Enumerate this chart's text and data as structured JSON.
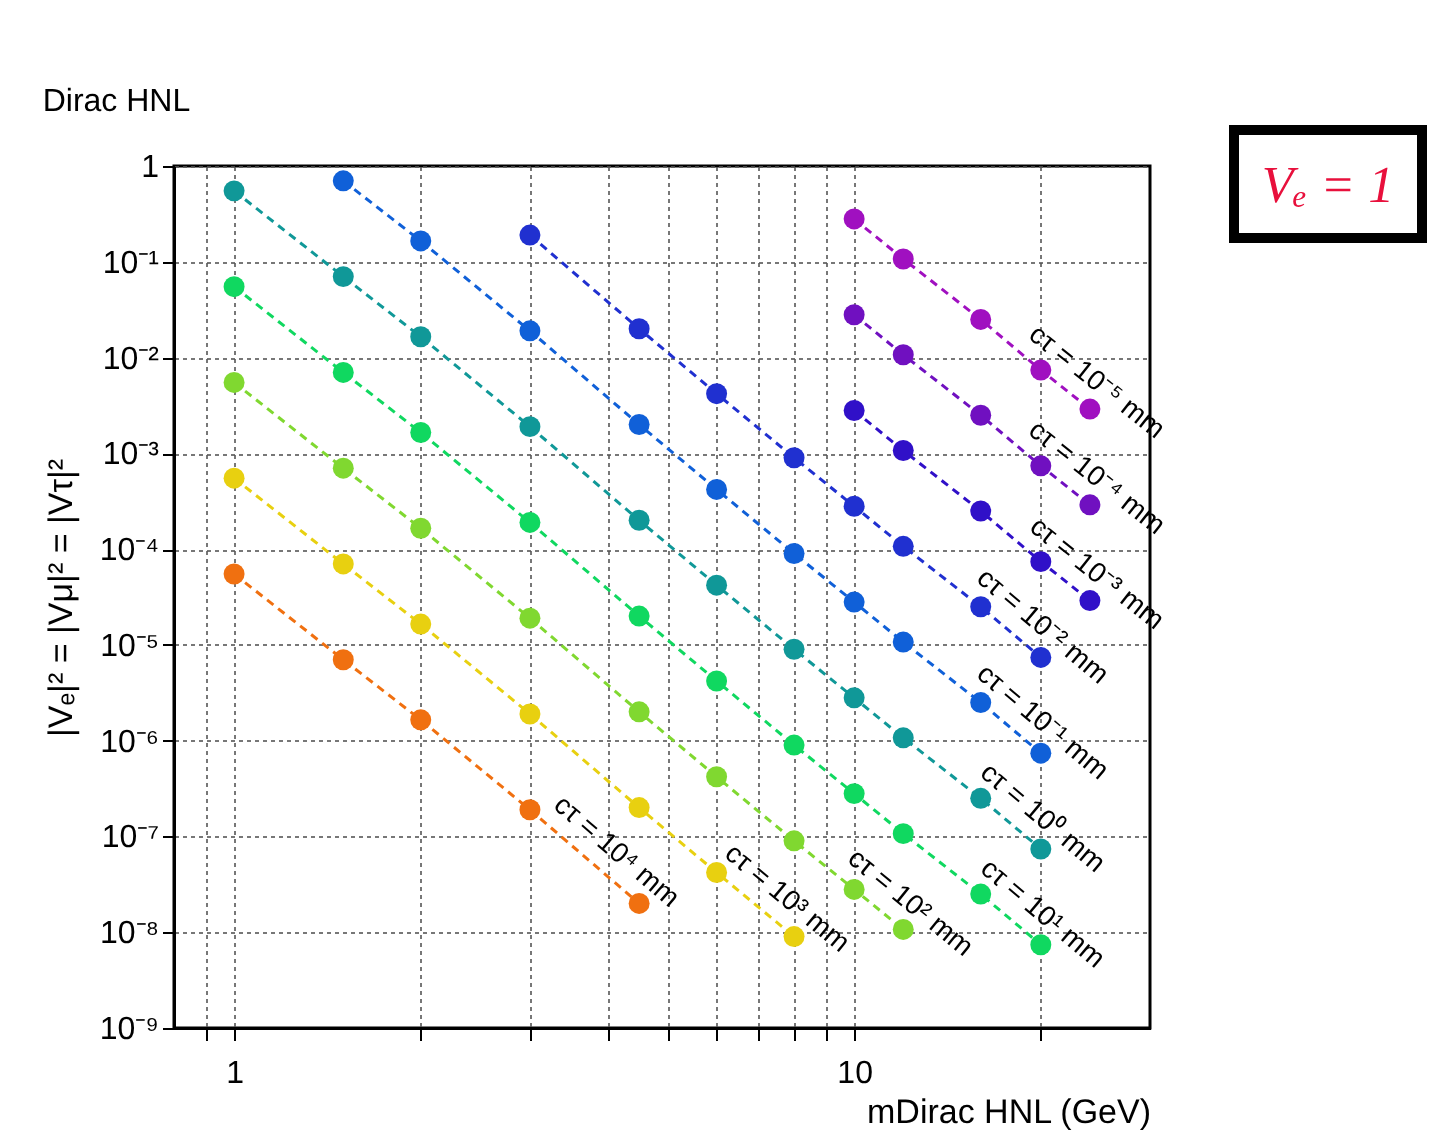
{
  "chart_data": {
    "type": "line",
    "title": "Dirac HNL",
    "xlabel": "mDirac HNL (GeV)",
    "ylabel": "|Vₑ|² = |Vμ|² = |Vτ|²",
    "annotations": [
      "Vₑ = 1"
    ],
    "log": "xy",
    "grid": true,
    "marker": "circle",
    "line_style": "dashed",
    "xlim": [
      0.8,
      30
    ],
    "xticks": [
      {
        "value": 0.9,
        "label": null
      },
      1,
      {
        "value": 2,
        "label": null
      },
      {
        "value": 3,
        "label": null
      },
      {
        "value": 4,
        "label": null
      },
      {
        "value": 5,
        "label": null
      },
      {
        "value": 6,
        "label": null
      },
      {
        "value": 7,
        "label": null
      },
      {
        "value": 8,
        "label": null
      },
      {
        "value": 9,
        "label": null
      },
      10,
      {
        "value": 20,
        "label": null
      }
    ],
    "ylim": [
      1e-09,
      1
    ],
    "yticks": [
      {
        "value": 1e-09,
        "label": "10⁻⁹"
      },
      {
        "value": 1e-08,
        "label": "10⁻⁸"
      },
      {
        "value": 1e-07,
        "label": "10⁻⁷"
      },
      {
        "value": 1e-06,
        "label": "10⁻⁶"
      },
      {
        "value": 1e-05,
        "label": "10⁻⁵"
      },
      {
        "value": 0.0001,
        "label": "10⁻⁴"
      },
      {
        "value": 0.001,
        "label": "10⁻³"
      },
      {
        "value": 0.01,
        "label": "10⁻²"
      },
      {
        "value": 0.1,
        "label": "10⁻¹"
      },
      1
    ],
    "series": [
      {
        "name": "cτ = 10⁴ mm",
        "color": "#f07010",
        "x": [
          1,
          1.5,
          2,
          3,
          4.5
        ],
        "values": [
          5.5e-05,
          7e-06,
          1.65e-06,
          1.9e-07,
          2e-08
        ]
      },
      {
        "name": "cτ = 10³ mm",
        "color": "#e8d010",
        "x": [
          1,
          1.5,
          2,
          3,
          4.5,
          6,
          8
        ],
        "values": [
          0.00055,
          7e-05,
          1.65e-05,
          1.9e-06,
          2e-07,
          4.2e-08,
          9e-09
        ]
      },
      {
        "name": "cτ = 10² mm",
        "color": "#80d830",
        "x": [
          1,
          1.5,
          2,
          3,
          4.5,
          6,
          8,
          10,
          12
        ],
        "values": [
          0.0055,
          0.0007,
          0.000165,
          1.9e-05,
          2e-06,
          4.2e-07,
          9e-08,
          2.8e-08,
          1.07e-08
        ]
      },
      {
        "name": "cτ = 10¹ mm",
        "color": "#10d860",
        "x": [
          1,
          1.5,
          2,
          3,
          4.5,
          6,
          8,
          10,
          12,
          16,
          20
        ],
        "values": [
          0.055,
          0.007,
          0.00165,
          0.00019,
          2e-05,
          4.2e-06,
          9e-07,
          2.8e-07,
          1.07e-07,
          2.5e-08,
          7.4e-09
        ]
      },
      {
        "name": "cτ = 10⁰ mm",
        "color": "#109898",
        "x": [
          1,
          1.5,
          2,
          3,
          4.5,
          6,
          8,
          10,
          12,
          16,
          20
        ],
        "values": [
          0.55,
          0.07,
          0.0165,
          0.0019,
          0.0002,
          4.2e-05,
          9e-06,
          2.8e-06,
          1.07e-06,
          2.5e-07,
          7.4e-08
        ]
      },
      {
        "name": "cτ = 10⁻¹ mm",
        "color": "#1060d8",
        "x": [
          1.5,
          2,
          3,
          4.5,
          6,
          8,
          10,
          12,
          16,
          20
        ],
        "values": [
          0.7,
          0.165,
          0.019,
          0.002,
          0.00042,
          9e-05,
          2.8e-05,
          1.07e-05,
          2.5e-06,
          7.4e-07
        ]
      },
      {
        "name": "cτ = 10⁻² mm",
        "color": "#2030d0",
        "x": [
          3,
          4.5,
          6,
          8,
          10,
          12,
          16,
          20
        ],
        "values": [
          0.19,
          0.02,
          0.0042,
          0.0009,
          0.00028,
          0.000107,
          2.5e-05,
          7.4e-06
        ]
      },
      {
        "name": "cτ = 10⁻³ mm",
        "color": "#3010c8",
        "x": [
          10,
          12,
          16,
          20,
          24
        ],
        "values": [
          0.0028,
          0.00107,
          0.00025,
          7.4e-05,
          2.9e-05
        ]
      },
      {
        "name": "cτ = 10⁻⁴ mm",
        "color": "#7010c0",
        "x": [
          10,
          12,
          16,
          20,
          24
        ],
        "values": [
          0.028,
          0.0107,
          0.0025,
          0.00074,
          0.00029
        ]
      },
      {
        "name": "cτ = 10⁻⁵ mm",
        "color": "#a010c0",
        "x": [
          10,
          12,
          16,
          20,
          24
        ],
        "values": [
          0.28,
          0.107,
          0.025,
          0.0074,
          0.0029
        ]
      }
    ]
  }
}
